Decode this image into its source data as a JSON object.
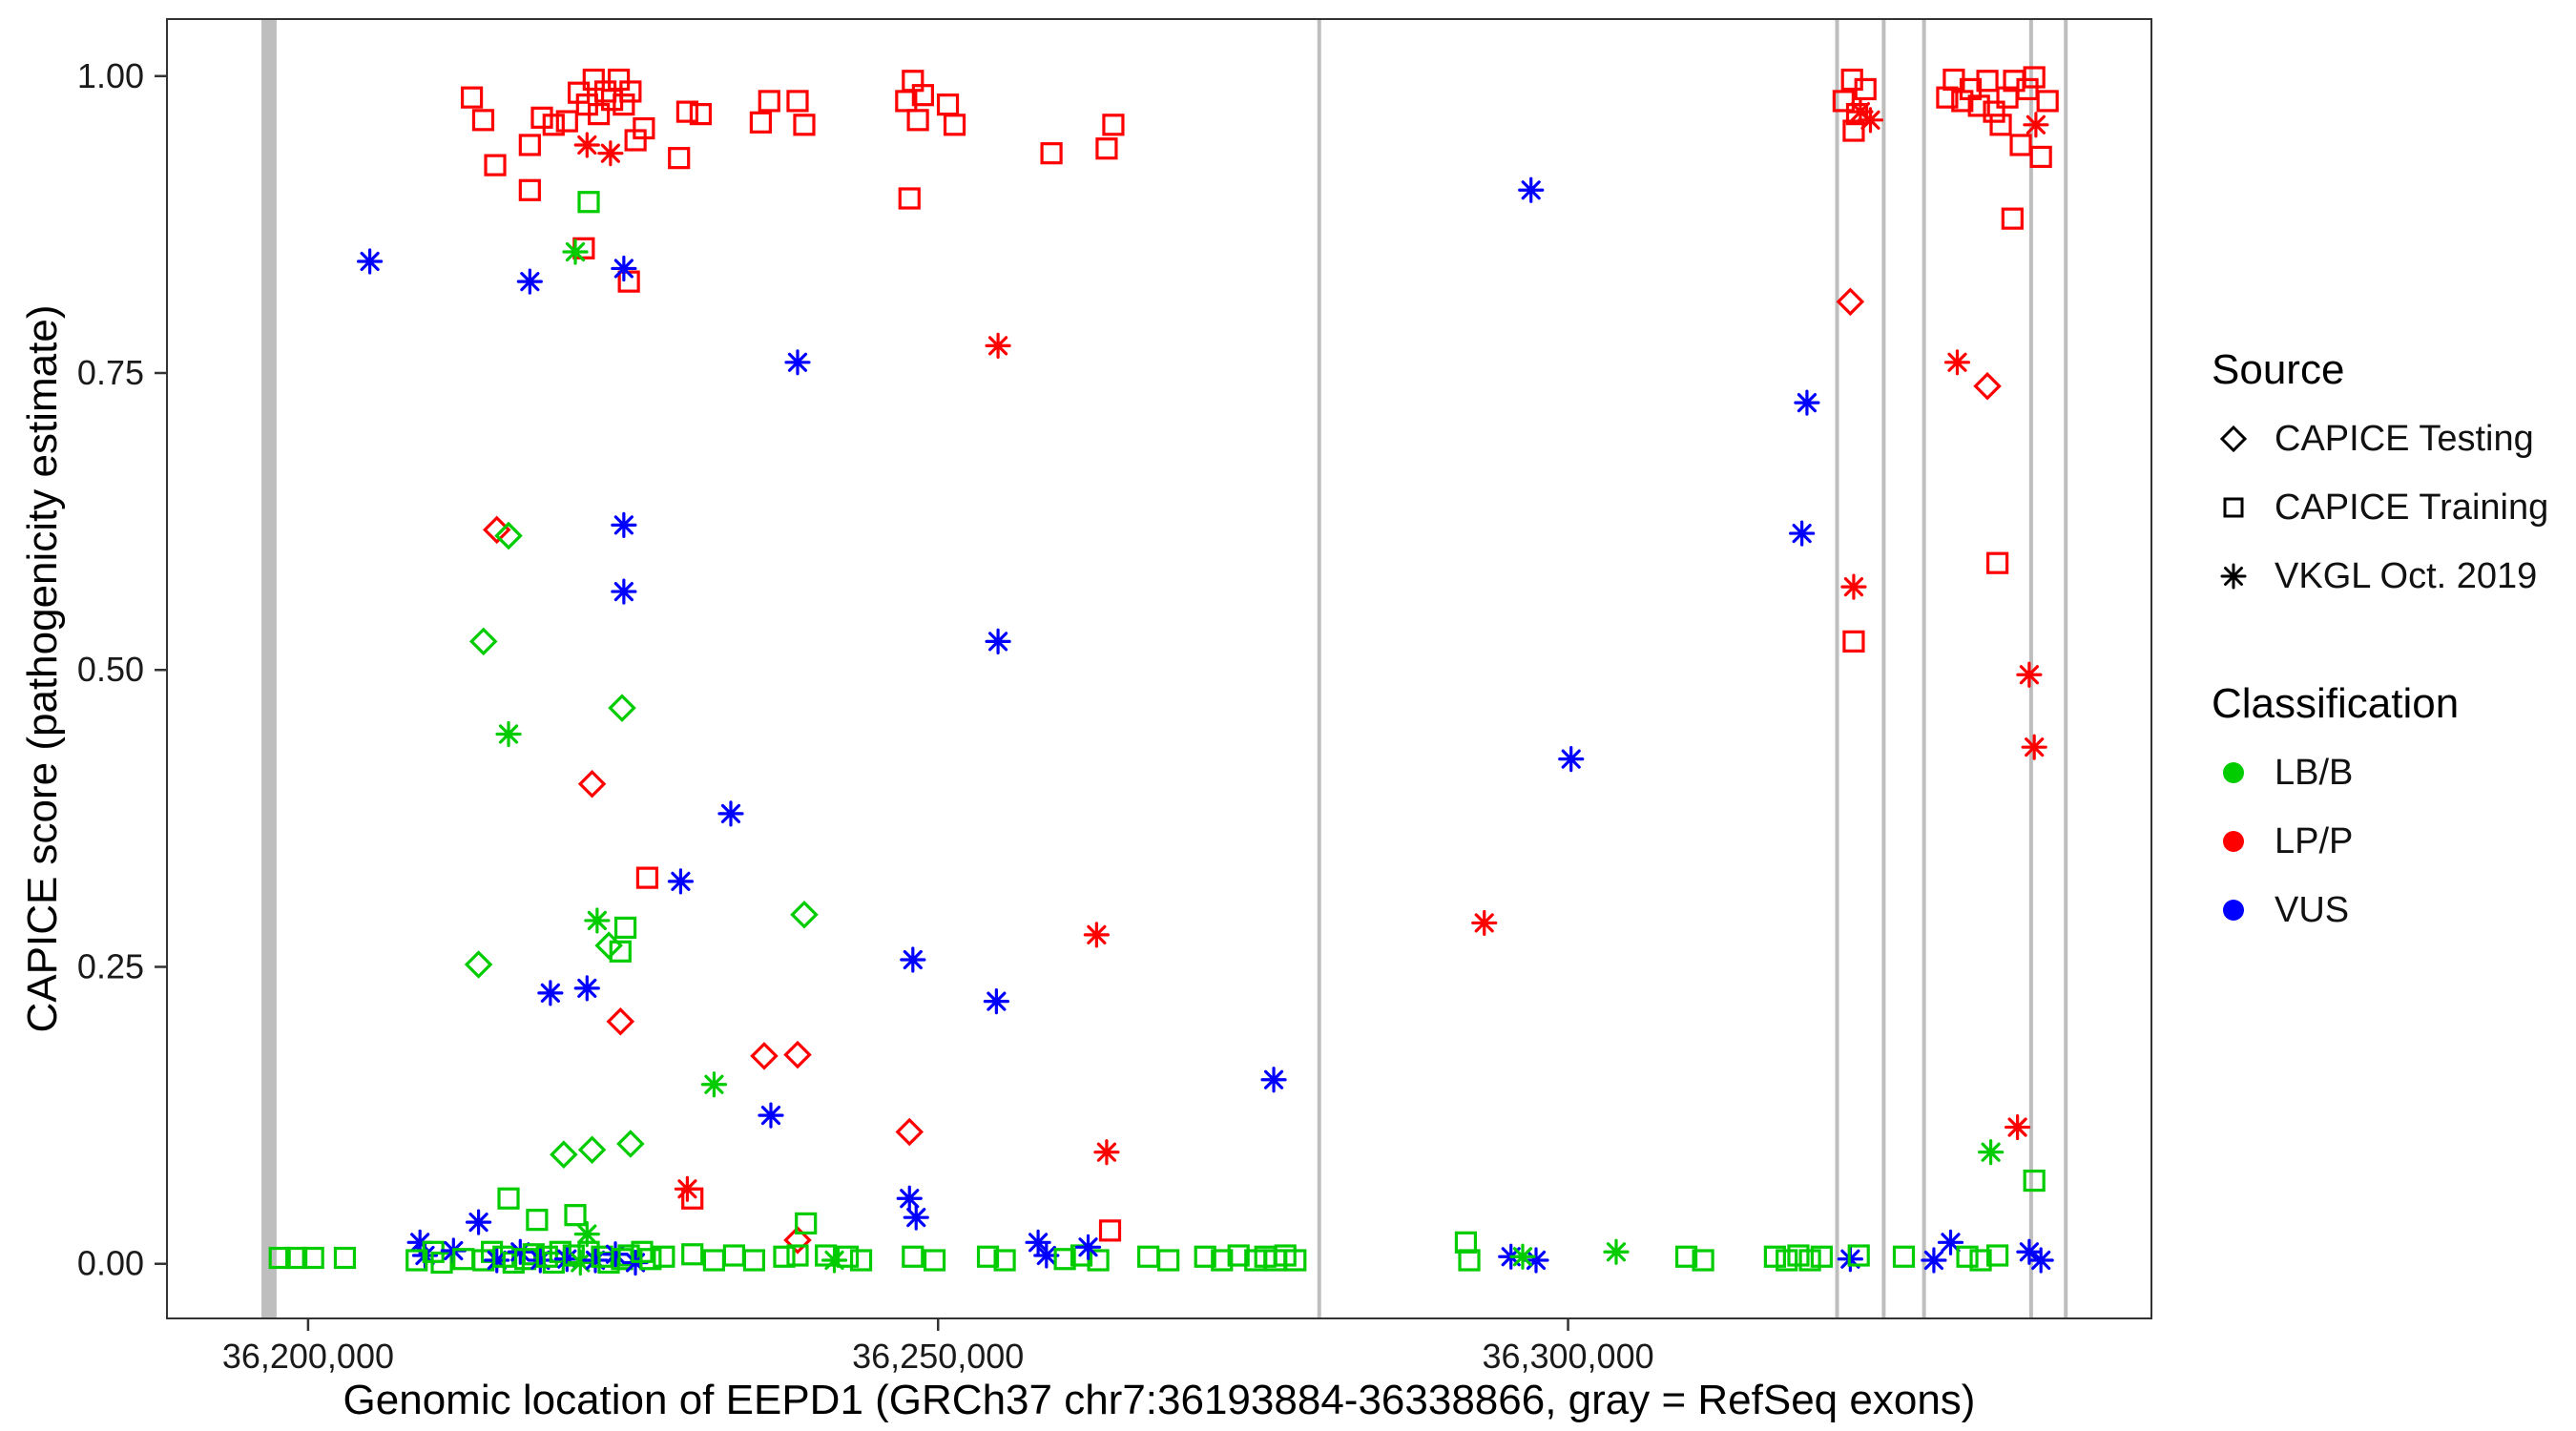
{
  "axes": {
    "x_label": "Genomic location of EEPD1 (GRCh37 chr7:36193884-36338866, gray = RefSeq exons)",
    "y_label": "CAPICE score (pathogenicity estimate)",
    "x_ticks": [
      {
        "value": 36200000,
        "label": "36,200,000"
      },
      {
        "value": 36250000,
        "label": "36,250,000"
      },
      {
        "value": 36300000,
        "label": "36,300,000"
      }
    ],
    "y_ticks": [
      {
        "value": 0.0,
        "label": "0.00"
      },
      {
        "value": 0.25,
        "label": "0.25"
      },
      {
        "value": 0.5,
        "label": "0.50"
      },
      {
        "value": 0.75,
        "label": "0.75"
      },
      {
        "value": 1.0,
        "label": "1.00"
      }
    ]
  },
  "legend": {
    "source": {
      "title": "Source",
      "items": [
        {
          "shape": "diamond",
          "label": "CAPICE Testing"
        },
        {
          "shape": "square",
          "label": "CAPICE Training"
        },
        {
          "shape": "asterisk",
          "label": "VKGL Oct. 2019"
        }
      ]
    },
    "classification": {
      "title": "Classification",
      "items": [
        {
          "color": "#00CC00",
          "label": "LB/B"
        },
        {
          "color": "#FF0000",
          "label": "LP/P"
        },
        {
          "color": "#0000FF",
          "label": "VUS"
        }
      ]
    }
  },
  "chart_data": {
    "type": "scatter",
    "title": "",
    "xlabel": "Genomic location of EEPD1 (GRCh37 chr7:36193884-36338866, gray = RefSeq exons)",
    "ylabel": "CAPICE score (pathogenicity estimate)",
    "x_domain": [
      36188800,
      36346300
    ],
    "y_domain": [
      -0.046,
      1.048
    ],
    "grid": false,
    "legend_position": "right",
    "exon_color": "#BEBEBE",
    "shape_map": {
      "d": "CAPICE Testing",
      "s": "CAPICE Training",
      "a": "VKGL Oct. 2019"
    },
    "class_map": {
      "B": "LB/B",
      "P": "LP/P",
      "V": "VUS"
    },
    "colors": {
      "B": "#00CC00",
      "P": "#FF0000",
      "V": "#0000FF"
    },
    "exons": [
      [
        36196300,
        36197500
      ],
      [
        36280100,
        36280400
      ],
      [
        36321200,
        36321500
      ],
      [
        36324900,
        36325200
      ],
      [
        36328100,
        36328400
      ],
      [
        36336600,
        36336900
      ],
      [
        36339350,
        36339650
      ]
    ],
    "points": [
      [
        36213000,
        0.982,
        "s",
        "P"
      ],
      [
        36213900,
        0.963,
        "s",
        "P"
      ],
      [
        36214850,
        0.925,
        "s",
        "P"
      ],
      [
        36217600,
        0.942,
        "s",
        "P"
      ],
      [
        36218560,
        0.965,
        "s",
        "P"
      ],
      [
        36219490,
        0.959,
        "s",
        "P"
      ],
      [
        36220550,
        0.962,
        "s",
        "P"
      ],
      [
        36221480,
        0.986,
        "s",
        "P"
      ],
      [
        36222140,
        0.976,
        "s",
        "P"
      ],
      [
        36222670,
        0.997,
        "s",
        "P"
      ],
      [
        36223070,
        0.968,
        "s",
        "P"
      ],
      [
        36223600,
        0.987,
        "s",
        "P"
      ],
      [
        36224130,
        0.98,
        "s",
        "P"
      ],
      [
        36224660,
        0.997,
        "s",
        "P"
      ],
      [
        36225060,
        0.976,
        "s",
        "P"
      ],
      [
        36225590,
        0.987,
        "s",
        "P"
      ],
      [
        36225990,
        0.946,
        "s",
        "P"
      ],
      [
        36226650,
        0.956,
        "s",
        "P"
      ],
      [
        36229440,
        0.931,
        "s",
        "P"
      ],
      [
        36230100,
        0.97,
        "s",
        "P"
      ],
      [
        36231160,
        0.968,
        "s",
        "P"
      ],
      [
        36235930,
        0.961,
        "s",
        "P"
      ],
      [
        36236600,
        0.979,
        "s",
        "P"
      ],
      [
        36238850,
        0.979,
        "s",
        "P"
      ],
      [
        36239380,
        0.959,
        "s",
        "P"
      ],
      [
        36247470,
        0.979,
        "s",
        "P"
      ],
      [
        36248000,
        0.996,
        "s",
        "P"
      ],
      [
        36248400,
        0.963,
        "s",
        "P"
      ],
      [
        36248800,
        0.984,
        "s",
        "P"
      ],
      [
        36247730,
        0.897,
        "s",
        "P"
      ],
      [
        36250780,
        0.976,
        "s",
        "P"
      ],
      [
        36251310,
        0.959,
        "s",
        "P"
      ],
      [
        36259000,
        0.935,
        "s",
        "P"
      ],
      [
        36263910,
        0.959,
        "s",
        "P"
      ],
      [
        36263380,
        0.939,
        "s",
        "P"
      ],
      [
        36217600,
        0.904,
        "s",
        "P"
      ],
      [
        36222140,
        0.942,
        "a",
        "P"
      ],
      [
        36224000,
        0.935,
        "a",
        "P"
      ],
      [
        36221880,
        0.855,
        "s",
        "P"
      ],
      [
        36222270,
        0.894,
        "s",
        "B"
      ],
      [
        36221210,
        0.852,
        "a",
        "B"
      ],
      [
        36225460,
        0.827,
        "s",
        "P"
      ],
      [
        36225060,
        0.838,
        "a",
        "V"
      ],
      [
        36204900,
        0.844,
        "a",
        "V"
      ],
      [
        36217600,
        0.827,
        "a",
        "V"
      ],
      [
        36238850,
        0.759,
        "a",
        "V"
      ],
      [
        36254760,
        0.773,
        "a",
        "P"
      ],
      [
        36297060,
        0.904,
        "a",
        "V"
      ],
      [
        36225060,
        0.622,
        "a",
        "V"
      ],
      [
        36225060,
        0.566,
        "a",
        "V"
      ],
      [
        36254760,
        0.524,
        "a",
        "V"
      ],
      [
        36300240,
        0.425,
        "a",
        "V"
      ],
      [
        36233550,
        0.379,
        "a",
        "V"
      ],
      [
        36229570,
        0.322,
        "a",
        "V"
      ],
      [
        36226920,
        0.325,
        "s",
        "P"
      ],
      [
        36219230,
        0.228,
        "a",
        "V"
      ],
      [
        36222140,
        0.232,
        "a",
        "V"
      ],
      [
        36248000,
        0.256,
        "a",
        "V"
      ],
      [
        36254630,
        0.221,
        "a",
        "V"
      ],
      [
        36236730,
        0.125,
        "a",
        "V"
      ],
      [
        36276640,
        0.155,
        "a",
        "V"
      ],
      [
        36293350,
        0.287,
        "a",
        "P"
      ],
      [
        36262580,
        0.277,
        "a",
        "P"
      ],
      [
        36263380,
        0.094,
        "a",
        "P"
      ],
      [
        36263650,
        0.028,
        "s",
        "P"
      ],
      [
        36214980,
        0.618,
        "d",
        "P"
      ],
      [
        36215910,
        0.613,
        "d",
        "B"
      ],
      [
        36213920,
        0.524,
        "d",
        "B"
      ],
      [
        36215910,
        0.446,
        "a",
        "B"
      ],
      [
        36224920,
        0.468,
        "d",
        "B"
      ],
      [
        36222540,
        0.404,
        "d",
        "P"
      ],
      [
        36213530,
        0.252,
        "d",
        "B"
      ],
      [
        36222940,
        0.289,
        "a",
        "B"
      ],
      [
        36225190,
        0.283,
        "s",
        "B"
      ],
      [
        36223870,
        0.268,
        "d",
        "B"
      ],
      [
        36224790,
        0.263,
        "s",
        "B"
      ],
      [
        36224790,
        0.204,
        "d",
        "P"
      ],
      [
        36236200,
        0.175,
        "d",
        "P"
      ],
      [
        36238850,
        0.176,
        "d",
        "P"
      ],
      [
        36239380,
        0.294,
        "d",
        "B"
      ],
      [
        36232220,
        0.151,
        "a",
        "B"
      ],
      [
        36247730,
        0.111,
        "d",
        "P"
      ],
      [
        36220290,
        0.092,
        "d",
        "B"
      ],
      [
        36222540,
        0.096,
        "d",
        "B"
      ],
      [
        36225590,
        0.101,
        "d",
        "B"
      ],
      [
        36230100,
        0.063,
        "a",
        "P"
      ],
      [
        36230500,
        0.055,
        "s",
        "P"
      ],
      [
        36215910,
        0.055,
        "s",
        "B"
      ],
      [
        36218170,
        0.037,
        "s",
        "B"
      ],
      [
        36221210,
        0.041,
        "s",
        "B"
      ],
      [
        36222140,
        0.025,
        "a",
        "B"
      ],
      [
        36238850,
        0.02,
        "d",
        "P"
      ],
      [
        36239510,
        0.034,
        "s",
        "B"
      ],
      [
        36318960,
        0.725,
        "a",
        "V"
      ],
      [
        36318560,
        0.615,
        "a",
        "V"
      ],
      [
        36322400,
        0.81,
        "d",
        "P"
      ],
      [
        36322670,
        0.57,
        "a",
        "P"
      ],
      [
        36322670,
        0.524,
        "s",
        "P"
      ],
      [
        36330890,
        0.759,
        "a",
        "P"
      ],
      [
        36333280,
        0.739,
        "d",
        "P"
      ],
      [
        36334080,
        0.59,
        "s",
        "P"
      ],
      [
        36335270,
        0.88,
        "s",
        "P"
      ],
      [
        36336600,
        0.496,
        "a",
        "P"
      ],
      [
        36337000,
        0.435,
        "a",
        "P"
      ],
      [
        36335670,
        0.115,
        "a",
        "P"
      ],
      [
        36333550,
        0.094,
        "a",
        "B"
      ],
      [
        36337000,
        0.07,
        "s",
        "B"
      ],
      [
        36321870,
        0.979,
        "s",
        "P"
      ],
      [
        36322540,
        0.997,
        "s",
        "P"
      ],
      [
        36322940,
        0.968,
        "s",
        "P"
      ],
      [
        36323200,
        0.97,
        "a",
        "P"
      ],
      [
        36323600,
        0.989,
        "s",
        "P"
      ],
      [
        36324000,
        0.963,
        "a",
        "P"
      ],
      [
        36322670,
        0.954,
        "s",
        "P"
      ],
      [
        36330090,
        0.982,
        "s",
        "P"
      ],
      [
        36330620,
        0.997,
        "s",
        "P"
      ],
      [
        36331290,
        0.979,
        "s",
        "P"
      ],
      [
        36331950,
        0.989,
        "s",
        "P"
      ],
      [
        36332610,
        0.975,
        "s",
        "P"
      ],
      [
        36333280,
        0.996,
        "s",
        "P"
      ],
      [
        36333810,
        0.97,
        "s",
        "P"
      ],
      [
        36334340,
        0.959,
        "s",
        "P"
      ],
      [
        36334870,
        0.982,
        "s",
        "P"
      ],
      [
        36335400,
        0.996,
        "s",
        "P"
      ],
      [
        36335930,
        0.942,
        "s",
        "P"
      ],
      [
        36336460,
        0.989,
        "s",
        "P"
      ],
      [
        36337000,
        0.999,
        "s",
        "P"
      ],
      [
        36337530,
        0.932,
        "s",
        "P"
      ],
      [
        36338060,
        0.979,
        "s",
        "P"
      ],
      [
        36337130,
        0.959,
        "a",
        "P"
      ],
      [
        36197750,
        0.005,
        "s",
        "B"
      ],
      [
        36199070,
        0.005,
        "s",
        "B"
      ],
      [
        36200400,
        0.005,
        "s",
        "B"
      ],
      [
        36202920,
        0.005,
        "s",
        "B"
      ],
      [
        36208880,
        0.018,
        "a",
        "V"
      ],
      [
        36209280,
        0.007,
        "a",
        "V"
      ],
      [
        36208620,
        0.003,
        "s",
        "B"
      ],
      [
        36209940,
        0.01,
        "s",
        "B"
      ],
      [
        36210610,
        0.001,
        "s",
        "B"
      ],
      [
        36211540,
        0.011,
        "a",
        "V"
      ],
      [
        36212330,
        0.004,
        "s",
        "B"
      ],
      [
        36213530,
        0.035,
        "a",
        "V"
      ],
      [
        36213920,
        0.003,
        "s",
        "B"
      ],
      [
        36214590,
        0.01,
        "s",
        "B"
      ],
      [
        36214980,
        0.003,
        "a",
        "V"
      ],
      [
        36215510,
        0.006,
        "s",
        "B"
      ],
      [
        36216310,
        0.001,
        "s",
        "B"
      ],
      [
        36216840,
        0.01,
        "a",
        "V"
      ],
      [
        36217240,
        0.004,
        "s",
        "B"
      ],
      [
        36217900,
        0.008,
        "s",
        "B"
      ],
      [
        36218430,
        0.003,
        "a",
        "V"
      ],
      [
        36218960,
        0.006,
        "s",
        "B"
      ],
      [
        36219490,
        0.001,
        "s",
        "B"
      ],
      [
        36220020,
        0.01,
        "s",
        "B"
      ],
      [
        36220550,
        0.004,
        "a",
        "V"
      ],
      [
        36221080,
        0.007,
        "s",
        "B"
      ],
      [
        36221610,
        0.001,
        "a",
        "B"
      ],
      [
        36222270,
        0.01,
        "s",
        "B"
      ],
      [
        36222800,
        0.003,
        "a",
        "V"
      ],
      [
        36223330,
        0.006,
        "s",
        "B"
      ],
      [
        36223860,
        0.001,
        "s",
        "B"
      ],
      [
        36224390,
        0.008,
        "a",
        "V"
      ],
      [
        36224920,
        0.004,
        "s",
        "B"
      ],
      [
        36225450,
        0.007,
        "s",
        "B"
      ],
      [
        36225980,
        0.001,
        "a",
        "V"
      ],
      [
        36226510,
        0.01,
        "s",
        "B"
      ],
      [
        36227180,
        0.004,
        "s",
        "B"
      ],
      [
        36228240,
        0.006,
        "s",
        "B"
      ],
      [
        36230500,
        0.008,
        "s",
        "B"
      ],
      [
        36232220,
        0.003,
        "s",
        "B"
      ],
      [
        36233810,
        0.007,
        "s",
        "B"
      ],
      [
        36235400,
        0.003,
        "s",
        "B"
      ],
      [
        36237790,
        0.006,
        "s",
        "B"
      ],
      [
        36238850,
        0.007,
        "s",
        "B"
      ],
      [
        36241100,
        0.007,
        "s",
        "B"
      ],
      [
        36241770,
        0.003,
        "a",
        "B"
      ],
      [
        36242830,
        0.006,
        "s",
        "B"
      ],
      [
        36243890,
        0.003,
        "s",
        "B"
      ],
      [
        36247730,
        0.055,
        "a",
        "V"
      ],
      [
        36248260,
        0.039,
        "a",
        "V"
      ],
      [
        36248000,
        0.006,
        "s",
        "B"
      ],
      [
        36249720,
        0.003,
        "s",
        "B"
      ],
      [
        36253960,
        0.006,
        "s",
        "B"
      ],
      [
        36255290,
        0.003,
        "s",
        "B"
      ],
      [
        36257940,
        0.018,
        "a",
        "V"
      ],
      [
        36258600,
        0.007,
        "a",
        "V"
      ],
      [
        36260060,
        0.004,
        "s",
        "B"
      ],
      [
        36261380,
        0.007,
        "s",
        "B"
      ],
      [
        36262710,
        0.003,
        "s",
        "B"
      ],
      [
        36261910,
        0.014,
        "a",
        "V"
      ],
      [
        36266690,
        0.006,
        "s",
        "B"
      ],
      [
        36268280,
        0.003,
        "s",
        "B"
      ],
      [
        36271200,
        0.006,
        "s",
        "B"
      ],
      [
        36272530,
        0.003,
        "s",
        "B"
      ],
      [
        36273850,
        0.007,
        "s",
        "B"
      ],
      [
        36275180,
        0.003,
        "s",
        "B"
      ],
      [
        36275970,
        0.006,
        "s",
        "B"
      ],
      [
        36276770,
        0.003,
        "s",
        "B"
      ],
      [
        36277560,
        0.007,
        "s",
        "B"
      ],
      [
        36278360,
        0.003,
        "s",
        "B"
      ],
      [
        36291890,
        0.018,
        "s",
        "B"
      ],
      [
        36292160,
        0.003,
        "s",
        "B"
      ],
      [
        36295470,
        0.006,
        "a",
        "V"
      ],
      [
        36297460,
        0.003,
        "a",
        "V"
      ],
      [
        36296400,
        0.006,
        "a",
        "B"
      ],
      [
        36303820,
        0.01,
        "a",
        "B"
      ],
      [
        36309390,
        0.006,
        "s",
        "B"
      ],
      [
        36310720,
        0.003,
        "s",
        "B"
      ],
      [
        36316420,
        0.006,
        "s",
        "B"
      ],
      [
        36317350,
        0.003,
        "s",
        "B"
      ],
      [
        36318280,
        0.007,
        "s",
        "B"
      ],
      [
        36319200,
        0.003,
        "s",
        "B"
      ],
      [
        36320130,
        0.006,
        "s",
        "B"
      ],
      [
        36322400,
        0.004,
        "a",
        "V"
      ],
      [
        36323070,
        0.007,
        "s",
        "B"
      ],
      [
        36326650,
        0.006,
        "s",
        "B"
      ],
      [
        36329030,
        0.003,
        "a",
        "V"
      ],
      [
        36330360,
        0.018,
        "a",
        "V"
      ],
      [
        36331690,
        0.006,
        "s",
        "B"
      ],
      [
        36332750,
        0.003,
        "s",
        "B"
      ],
      [
        36334080,
        0.007,
        "s",
        "B"
      ],
      [
        36336600,
        0.01,
        "a",
        "V"
      ],
      [
        36337530,
        0.003,
        "a",
        "V"
      ]
    ]
  }
}
